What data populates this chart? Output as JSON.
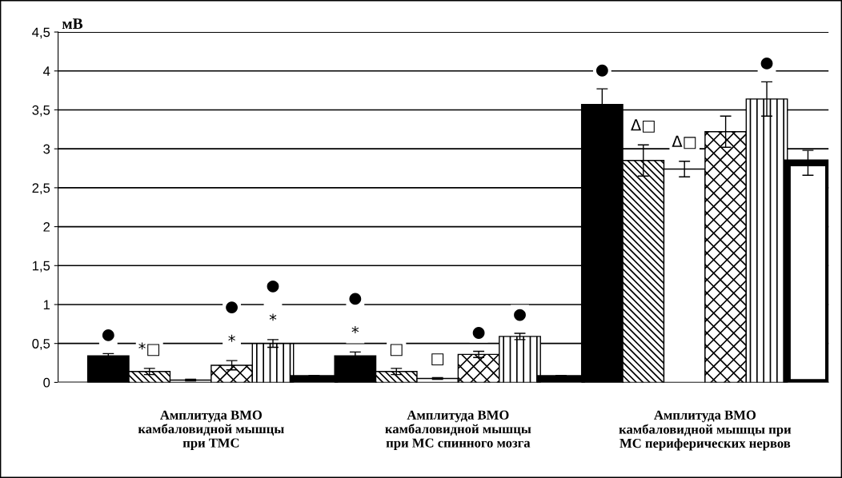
{
  "chart_data": {
    "type": "bar",
    "categories": [
      "Амплитуда ВМО\nкамбаловидной мышцы\nпри ТМС",
      "Амплитуда ВМО\nкамбаловидной мышцы\nпри МС спинного мозга",
      "Амплитуда ВМО\nкамбаловидной мышцы при\nМС периферических нервов"
    ],
    "ylabel": "мВ",
    "ylim": [
      0,
      4.5
    ],
    "yticks": [
      0,
      {
        "value": 0.5,
        "label": "0,5"
      },
      1,
      {
        "value": 1.5,
        "label": "1,5"
      },
      2,
      {
        "value": 2.5,
        "label": "2,5"
      },
      3,
      {
        "value": 3.5,
        "label": "3,5"
      },
      4,
      {
        "value": 4.5,
        "label": "4,5"
      }
    ],
    "grid": "y",
    "legend": false,
    "series": [
      {
        "color": "#000000",
        "values": [
          0.34,
          0.34,
          3.57
        ],
        "errors": [
          0.03,
          0.05,
          0.2
        ],
        "value_labels": [
          "●",
          "●\n\n*",
          "●"
        ]
      },
      {
        "color": "#000000",
        "values": [
          0.14,
          0.14,
          2.85
        ],
        "errors": [
          0.04,
          0.04,
          0.2
        ],
        "value_labels": [
          "*□",
          "□",
          "Δ□"
        ]
      },
      {
        "color": "#ffffff",
        "values": [
          0.03,
          0.05,
          2.74
        ],
        "errors": [
          0.01,
          0.01,
          0.1
        ],
        "value_labels": [
          null,
          "□",
          "Δ□"
        ]
      },
      {
        "color": "#000000",
        "values": [
          0.22,
          0.36,
          3.22
        ],
        "errors": [
          0.06,
          0.04,
          0.2
        ],
        "value_labels": [
          "●\n\n*",
          "●",
          null
        ]
      },
      {
        "color": "#000000",
        "values": [
          0.5,
          0.59,
          3.64
        ],
        "errors": [
          0.05,
          0.04,
          0.22
        ],
        "value_labels": [
          "●\n\n*",
          "●",
          "●"
        ]
      },
      {
        "color": "#ffffff",
        "values": [
          0.05,
          0.05,
          2.82
        ],
        "errors": [
          0.04,
          0.04,
          0.16
        ],
        "value_labels": [
          null,
          null,
          null
        ]
      }
    ]
  }
}
